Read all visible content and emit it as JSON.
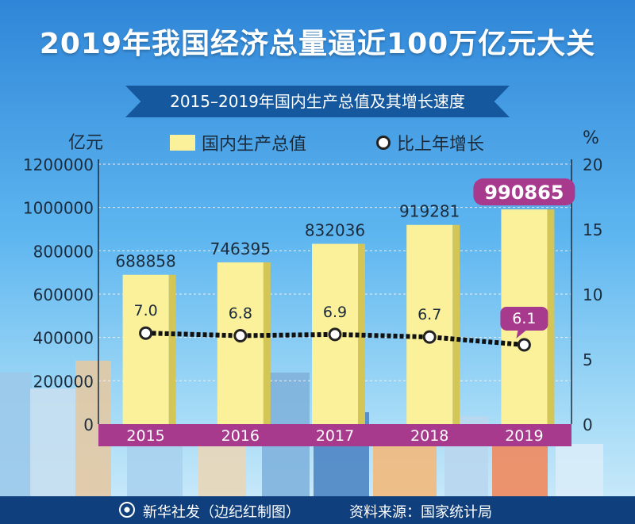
{
  "header": {
    "title": "2019年我国经济总量逼近100万亿元大关",
    "subtitle": "2015–2019年国内生产总值及其增长速度"
  },
  "legend": {
    "unit_left": "亿元",
    "unit_right": "%",
    "bar_series": "国内生产总值",
    "line_series": "比上年增长"
  },
  "footer": {
    "credit": "新华社发（边纪红制图）",
    "source": "资料来源：国家统计局"
  },
  "colors": {
    "bar": "#fbf19a",
    "bar_side": "#d3c657",
    "axis_band": "#a83a8e",
    "highlight": "#a83a8e",
    "line": "#111111"
  },
  "icons": [
    "xinhua-logo-icon"
  ],
  "chart_data": {
    "type": "bar",
    "categories": [
      "2015",
      "2016",
      "2017",
      "2018",
      "2019"
    ],
    "series": [
      {
        "name": "国内生产总值",
        "type": "bar",
        "axis": "left",
        "values": [
          688858,
          746395,
          832036,
          919281,
          990865
        ],
        "labels": [
          "688858",
          "746395",
          "832036",
          "919281",
          "990865"
        ]
      },
      {
        "name": "比上年增长",
        "type": "line",
        "axis": "right",
        "values": [
          7.0,
          6.8,
          6.9,
          6.7,
          6.1
        ],
        "labels": [
          "7.0",
          "6.8",
          "6.9",
          "6.7",
          "6.1"
        ]
      }
    ],
    "ylabel": "亿元",
    "y2label": "%",
    "ylim": [
      0,
      1200000
    ],
    "y2lim": [
      0,
      20
    ],
    "yticks": [
      "0",
      "200000",
      "400000",
      "600000",
      "800000",
      "1000000",
      "1200000"
    ],
    "y2ticks": [
      "0",
      "5",
      "10",
      "15",
      "20"
    ],
    "highlight": "2019",
    "grid": true,
    "legend_position": "top"
  }
}
